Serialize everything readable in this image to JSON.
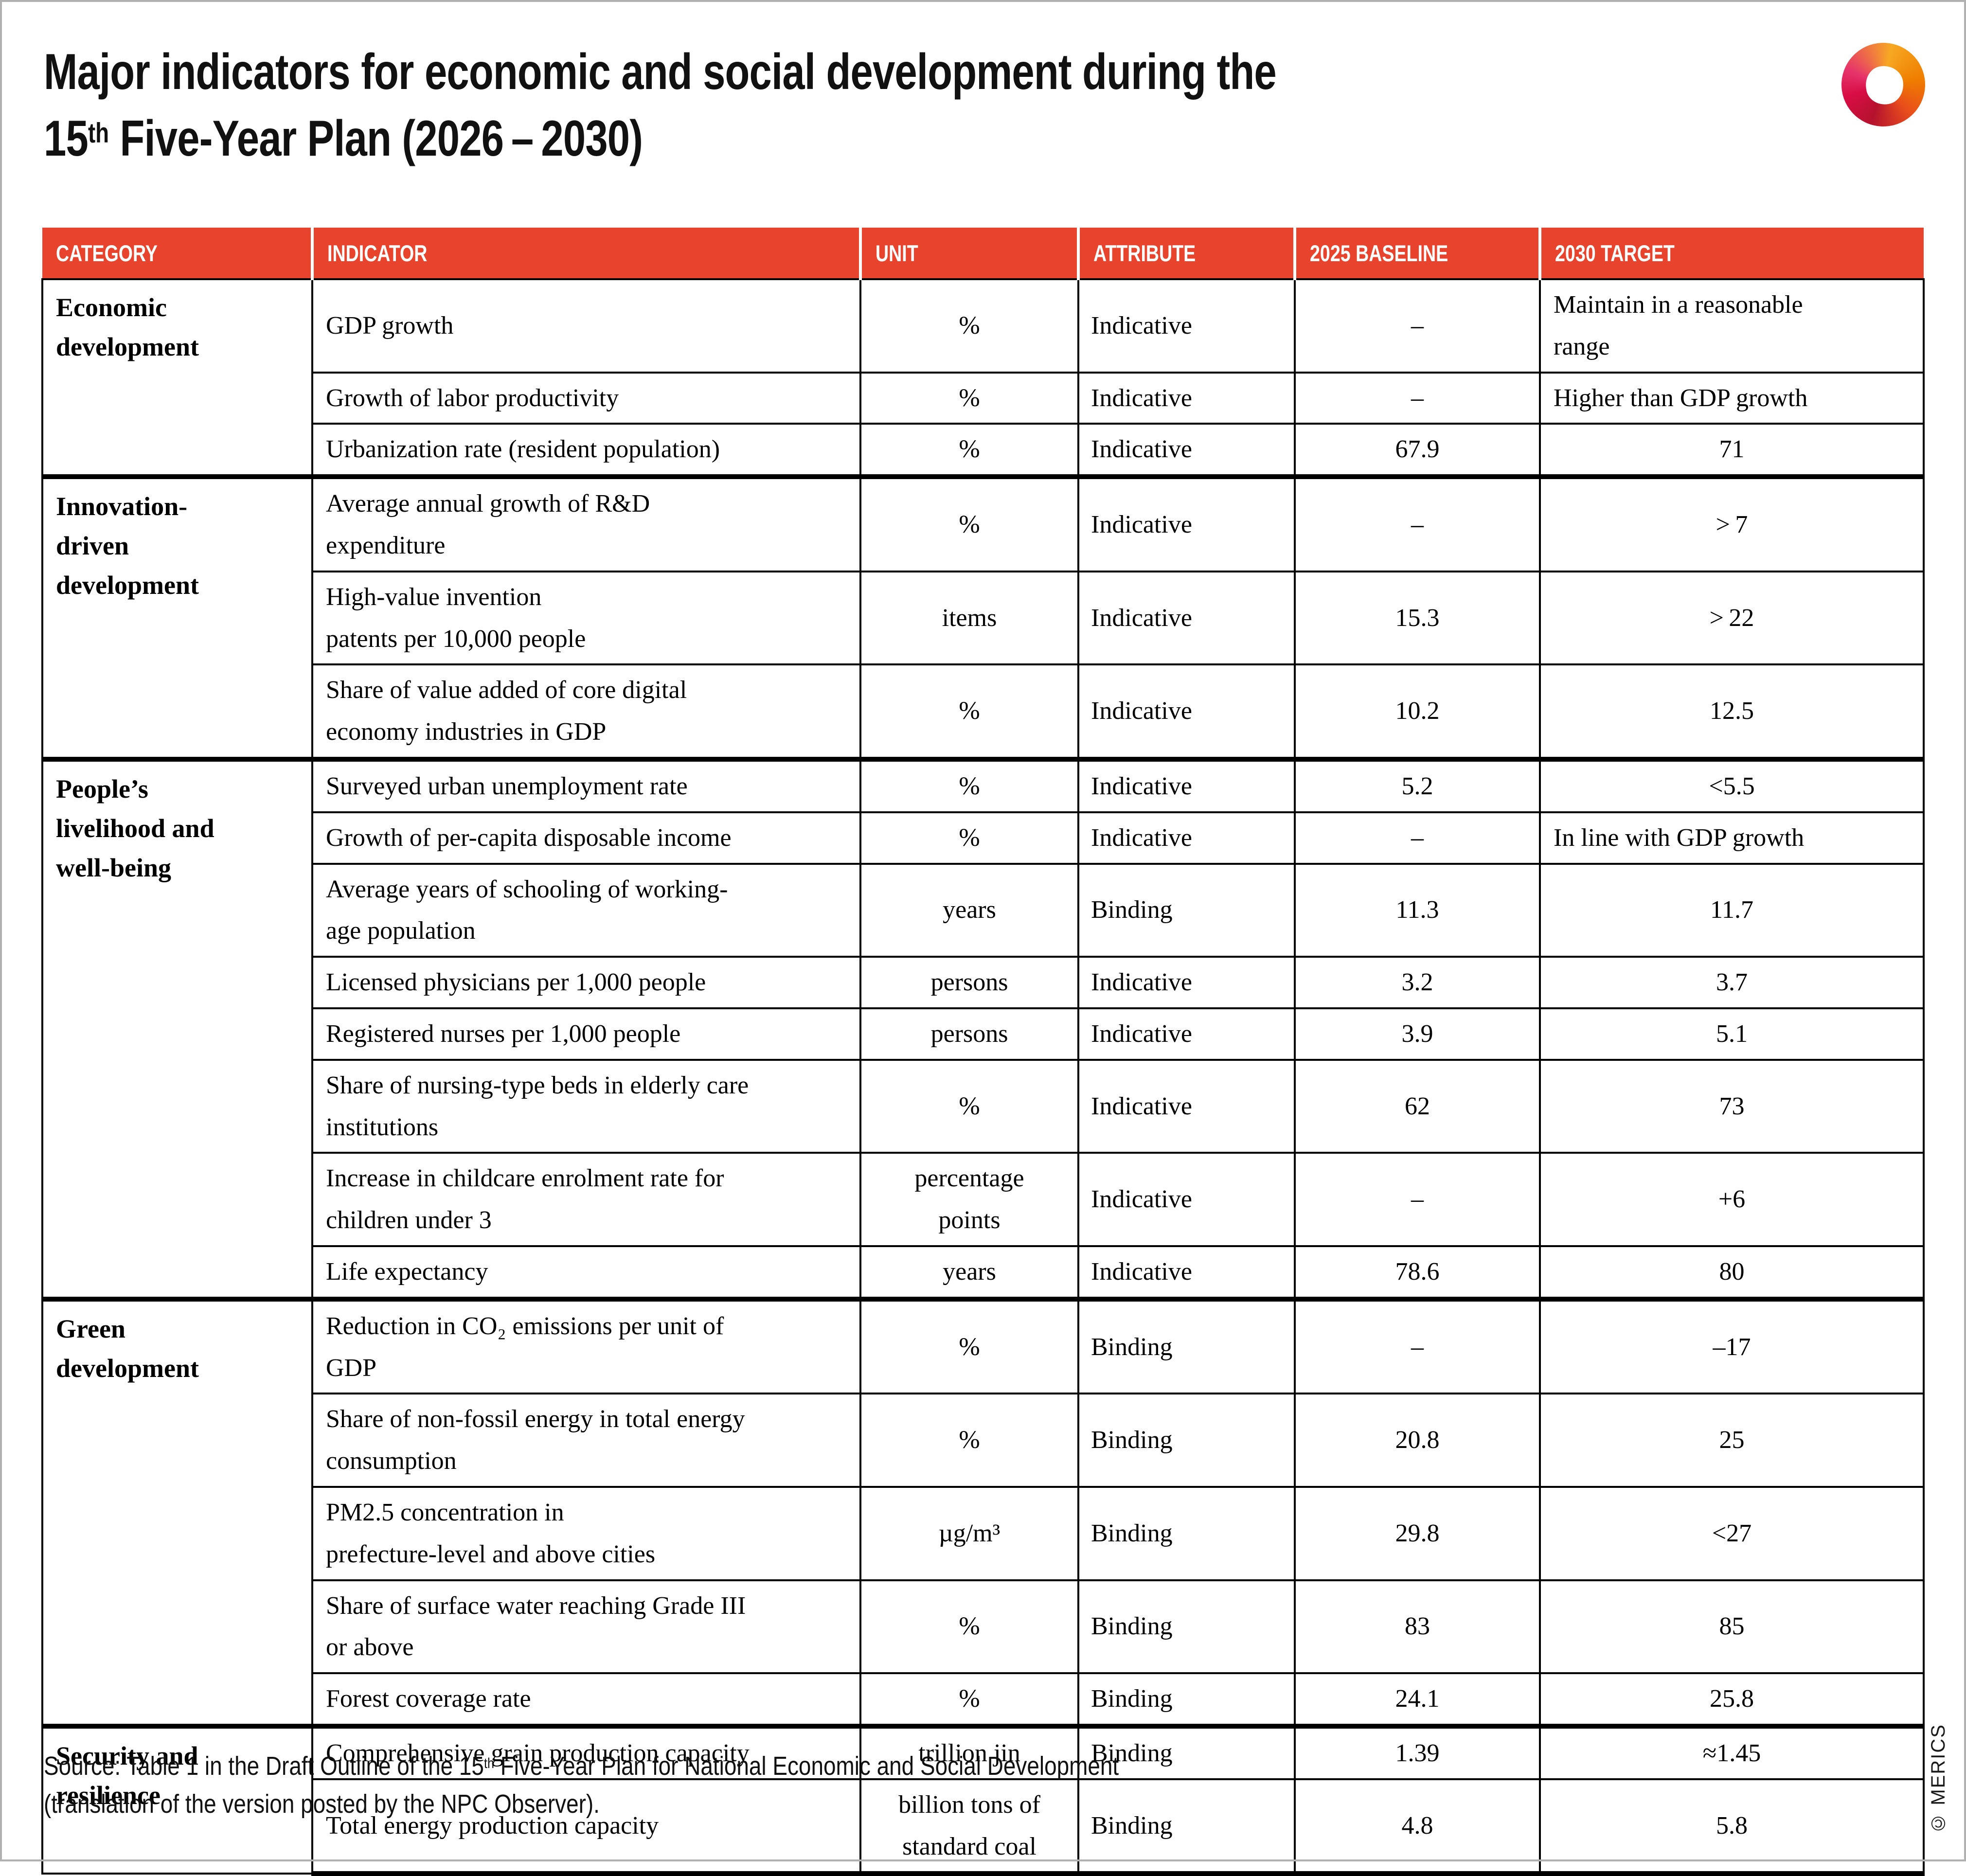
{
  "header": {
    "title_line1": "Major indicators for economic and social development during the",
    "title_num": "15",
    "title_sup": "th",
    "title_rest": " Five-Year Plan (2026 – 2030)"
  },
  "chart_data": {
    "type": "table",
    "title": "Major indicators for economic and social development during the 15th Five-Year Plan (2026–2030)",
    "columns": [
      "CATEGORY",
      "INDICATOR",
      "UNIT",
      "ATTRIBUTE",
      "2025 BASELINE",
      "2030 TARGET"
    ],
    "groups": [
      {
        "category": "Economic\ndevelopment",
        "rows": [
          {
            "indicator": "GDP growth",
            "unit": "%",
            "attribute": "Indicative",
            "baseline": "–",
            "target": "Maintain in a reasonable\nrange",
            "align": "left",
            "h": 162
          },
          {
            "indicator": "Growth of labor productivity",
            "unit": "%",
            "attribute": "Indicative",
            "baseline": "–",
            "target": "Higher than GDP growth",
            "align": "left",
            "h": 100
          },
          {
            "indicator": "Urbanization rate (resident population)",
            "unit": "%",
            "attribute": "Indicative",
            "baseline": "67.9",
            "target": "71",
            "h": 98
          }
        ]
      },
      {
        "category": "Innovation-\ndriven\ndevelopment",
        "rows": [
          {
            "indicator": "Average annual growth of R&D\nexpenditure",
            "unit": "%",
            "attribute": "Indicative",
            "baseline": "–",
            "target": "> 7",
            "h": 166
          },
          {
            "indicator": "High-value invention\npatents per 10,000 people",
            "unit": "items",
            "attribute": "Indicative",
            "baseline": "15.3",
            "target": "> 22",
            "h": 178
          },
          {
            "indicator": "Share of value added of core digital\neconomy industries in GDP",
            "unit": "%",
            "attribute": "Indicative",
            "baseline": "10.2",
            "target": "12.5",
            "h": 170
          }
        ]
      },
      {
        "category": "People’s\nlivelihood and\nwell-being",
        "rows": [
          {
            "indicator": "Surveyed urban unemployment rate",
            "unit": "%",
            "attribute": "Indicative",
            "baseline": "5.2",
            "target": "<5.5",
            "h": 98
          },
          {
            "indicator": "Growth of per-capita disposable income",
            "unit": "%",
            "attribute": "Indicative",
            "baseline": "–",
            "target": "In line with GDP growth",
            "align": "left",
            "h": 100
          },
          {
            "indicator": "Average years of schooling of working-\nage population",
            "unit": "years",
            "attribute": "Binding",
            "baseline": "11.3",
            "target": "11.7",
            "h": 172
          },
          {
            "indicator": "Licensed physicians per 1,000 people",
            "unit": "persons",
            "attribute": "Indicative",
            "baseline": "3.2",
            "target": "3.7",
            "h": 98
          },
          {
            "indicator": "Registered nurses per 1,000 people",
            "unit": "persons",
            "attribute": "Indicative",
            "baseline": "3.9",
            "target": "5.1",
            "h": 100
          },
          {
            "indicator": "Share of nursing-type beds in elderly care\ninstitutions",
            "unit": "%",
            "attribute": "Indicative",
            "baseline": "62",
            "target": "73",
            "h": 164
          },
          {
            "indicator": "Increase in childcare enrolment rate for\nchildren under 3",
            "unit": "percentage\npoints",
            "attribute": "Indicative",
            "baseline": "–",
            "target": "+6",
            "h": 168
          },
          {
            "indicator": "Life expectancy",
            "unit": "years",
            "attribute": "Indicative",
            "baseline": "78.6",
            "target": "80",
            "h": 98
          }
        ]
      },
      {
        "category": "Green\ndevelopment",
        "rows": [
          {
            "indicator": "Reduction in CO₂ emissions per unit of\nGDP",
            "unit": "%",
            "attribute": "Binding",
            "baseline": "–",
            "target": "–17",
            "h": 172
          },
          {
            "indicator": "Share of non-fossil energy in total energy\nconsumption",
            "unit": "%",
            "attribute": "Binding",
            "baseline": "20.8",
            "target": "25",
            "h": 186
          },
          {
            "indicator": "PM2.5 concentration in\nprefecture-level and above cities",
            "unit": "µg/m³",
            "attribute": "Binding",
            "baseline": "29.8",
            "target": "<27",
            "h": 188
          },
          {
            "indicator": "Share of surface water reaching Grade III\nor above",
            "unit": "%",
            "attribute": "Binding",
            "baseline": "83",
            "target": "85",
            "h": 188
          },
          {
            "indicator": "Forest coverage rate",
            "unit": "%",
            "attribute": "Binding",
            "baseline": "24.1",
            "target": "25.8",
            "h": 98
          }
        ]
      },
      {
        "category": "Security and\nresilience",
        "rows": [
          {
            "indicator": "Comprehensive grain production capacity",
            "unit": "trillion jin",
            "attribute": "Binding",
            "baseline": "1.39",
            "target": "≈1.45",
            "h": 98
          },
          {
            "indicator": "Total energy production capacity",
            "unit": "billion tons of\nstandard coal",
            "attribute": "Binding",
            "baseline": "4.8",
            "target": "5.8",
            "h": 142
          }
        ]
      }
    ]
  },
  "source": {
    "part1": "Source: Table 1 in the Draft Outline of the 15",
    "sup": "th",
    "part2": " Five-Year Plan for National Economic and Social Development",
    "line2": "(translation of the version posted by the NPC Observer)."
  },
  "credit": "© MERICS",
  "colors": {
    "header_red": "#E8432C",
    "border_black": "#000000",
    "frame_gray": "#B1B1B1"
  }
}
